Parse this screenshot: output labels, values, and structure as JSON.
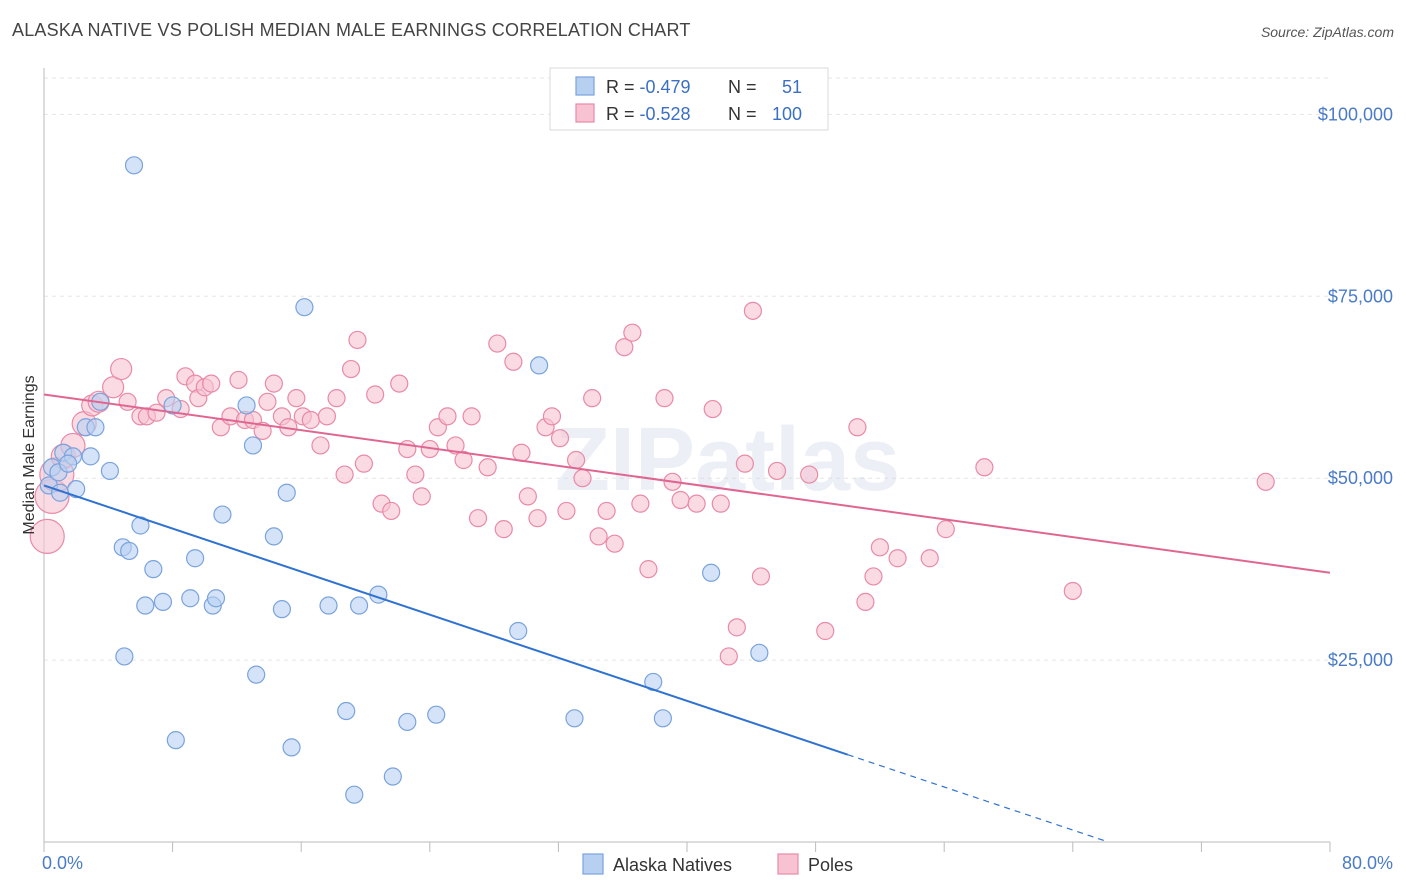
{
  "title": "ALASKA NATIVE VS POLISH MEDIAN MALE EARNINGS CORRELATION CHART",
  "source": "Source: ZipAtlas.com",
  "watermark": "ZIPatlas",
  "colors": {
    "blue_fill": "#b7d0f2",
    "blue_stroke": "#7aa3dd",
    "blue_line": "#2f72d0",
    "pink_fill": "#f7c3d2",
    "pink_stroke": "#e98aa6",
    "pink_line": "#e06692",
    "tick_label": "#4a7bc8"
  },
  "legend": {
    "rows": [
      {
        "r_label": "R = ",
        "r_value": "-0.479",
        "n_label": "N = ",
        "n_value": "51"
      },
      {
        "r_label": "R = ",
        "r_value": "-0.528",
        "n_label": "N = ",
        "n_value": "100"
      }
    ]
  },
  "chart_data": {
    "type": "scatter",
    "title": "ALASKA NATIVE VS POLISH MEDIAN MALE EARNINGS CORRELATION CHART",
    "xlabel": "",
    "ylabel": "Median Male Earnings",
    "xlim": [
      0,
      80
    ],
    "ylim": [
      0,
      105000
    ],
    "x_tick_labels": [
      "0.0%",
      "80.0%"
    ],
    "y_ticks": [
      25000,
      50000,
      75000,
      100000
    ],
    "y_tick_labels": [
      "$25,000",
      "$50,000",
      "$75,000",
      "$100,000"
    ],
    "grid": true,
    "legend_position": "top-center",
    "series": [
      {
        "name": "Alaska Natives",
        "r": -0.479,
        "n": 51,
        "trend": {
          "x0": 0,
          "y0": 49000,
          "x1": 50,
          "y1": 12000,
          "dashed_to_x": 66
        },
        "points": [
          [
            0.3,
            49000
          ],
          [
            0.5,
            51500
          ],
          [
            0.9,
            50800
          ],
          [
            1.0,
            48000
          ],
          [
            1.2,
            53500
          ],
          [
            1.8,
            53000
          ],
          [
            2.0,
            48500
          ],
          [
            2.6,
            57000
          ],
          [
            2.9,
            53000
          ],
          [
            3.2,
            57000
          ],
          [
            3.5,
            60500
          ],
          [
            4.1,
            51000
          ],
          [
            4.9,
            40500
          ],
          [
            5.0,
            25500
          ],
          [
            5.3,
            40000
          ],
          [
            5.6,
            93000
          ],
          [
            6.0,
            43500
          ],
          [
            6.3,
            32500
          ],
          [
            6.8,
            37500
          ],
          [
            7.4,
            33000
          ],
          [
            8.0,
            60000
          ],
          [
            8.2,
            14000
          ],
          [
            9.1,
            33500
          ],
          [
            9.4,
            39000
          ],
          [
            10.5,
            32500
          ],
          [
            10.7,
            33500
          ],
          [
            11.1,
            45000
          ],
          [
            12.6,
            60000
          ],
          [
            13.0,
            54500
          ],
          [
            13.2,
            23000
          ],
          [
            14.3,
            42000
          ],
          [
            14.8,
            32000
          ],
          [
            15.1,
            48000
          ],
          [
            15.4,
            13000
          ],
          [
            16.2,
            73500
          ],
          [
            17.7,
            32500
          ],
          [
            18.8,
            18000
          ],
          [
            19.3,
            6500
          ],
          [
            19.6,
            32500
          ],
          [
            20.8,
            34000
          ],
          [
            21.7,
            9000
          ],
          [
            22.6,
            16500
          ],
          [
            24.4,
            17500
          ],
          [
            29.5,
            29000
          ],
          [
            30.8,
            65500
          ],
          [
            33.0,
            17000
          ],
          [
            37.9,
            22000
          ],
          [
            38.5,
            17000
          ],
          [
            41.5,
            37000
          ],
          [
            44.5,
            26000
          ],
          [
            1.5,
            52000
          ]
        ]
      },
      {
        "name": "Poles",
        "r": -0.528,
        "n": 100,
        "trend": {
          "x0": 0,
          "y0": 61500,
          "x1": 80,
          "y1": 37000
        },
        "points": [
          [
            0.2,
            42000
          ],
          [
            0.5,
            47500
          ],
          [
            0.8,
            50500
          ],
          [
            1.2,
            53000
          ],
          [
            1.8,
            54500
          ],
          [
            2.5,
            57500
          ],
          [
            3.0,
            60000
          ],
          [
            3.4,
            60500
          ],
          [
            4.3,
            62500
          ],
          [
            4.8,
            65000
          ],
          [
            5.2,
            60500
          ],
          [
            6.0,
            58500
          ],
          [
            6.4,
            58500
          ],
          [
            7.0,
            59000
          ],
          [
            7.6,
            61000
          ],
          [
            8.5,
            59500
          ],
          [
            8.8,
            64000
          ],
          [
            9.4,
            63000
          ],
          [
            9.6,
            61000
          ],
          [
            10.0,
            62500
          ],
          [
            10.4,
            63000
          ],
          [
            11.0,
            57000
          ],
          [
            11.6,
            58500
          ],
          [
            12.1,
            63500
          ],
          [
            12.5,
            58000
          ],
          [
            13.0,
            58000
          ],
          [
            13.6,
            56500
          ],
          [
            13.9,
            60500
          ],
          [
            14.3,
            63000
          ],
          [
            14.8,
            58500
          ],
          [
            15.2,
            57000
          ],
          [
            15.7,
            61000
          ],
          [
            16.1,
            58500
          ],
          [
            16.6,
            58000
          ],
          [
            17.2,
            54500
          ],
          [
            17.6,
            58500
          ],
          [
            18.2,
            61000
          ],
          [
            18.7,
            50500
          ],
          [
            19.1,
            65000
          ],
          [
            19.5,
            69000
          ],
          [
            19.9,
            52000
          ],
          [
            20.6,
            61500
          ],
          [
            21.0,
            46500
          ],
          [
            21.6,
            45500
          ],
          [
            22.1,
            63000
          ],
          [
            22.6,
            54000
          ],
          [
            23.1,
            50500
          ],
          [
            23.5,
            47500
          ],
          [
            24.0,
            54000
          ],
          [
            24.5,
            57000
          ],
          [
            25.1,
            58500
          ],
          [
            25.6,
            54500
          ],
          [
            26.1,
            52500
          ],
          [
            26.6,
            58500
          ],
          [
            27.0,
            44500
          ],
          [
            27.6,
            51500
          ],
          [
            28.2,
            68500
          ],
          [
            28.6,
            43000
          ],
          [
            29.2,
            66000
          ],
          [
            29.7,
            53500
          ],
          [
            30.1,
            47500
          ],
          [
            30.7,
            44500
          ],
          [
            31.2,
            57000
          ],
          [
            31.6,
            58500
          ],
          [
            32.1,
            55500
          ],
          [
            32.5,
            45500
          ],
          [
            33.1,
            52500
          ],
          [
            33.5,
            50000
          ],
          [
            34.1,
            61000
          ],
          [
            34.5,
            42000
          ],
          [
            35.0,
            45500
          ],
          [
            35.5,
            41000
          ],
          [
            36.1,
            68000
          ],
          [
            36.6,
            70000
          ],
          [
            37.1,
            46500
          ],
          [
            37.6,
            37500
          ],
          [
            38.6,
            61000
          ],
          [
            39.1,
            49500
          ],
          [
            39.6,
            47000
          ],
          [
            40.6,
            46500
          ],
          [
            41.6,
            59500
          ],
          [
            42.1,
            46500
          ],
          [
            42.6,
            25500
          ],
          [
            43.1,
            29500
          ],
          [
            43.6,
            52000
          ],
          [
            44.1,
            73000
          ],
          [
            44.6,
            36500
          ],
          [
            45.6,
            51000
          ],
          [
            47.6,
            50500
          ],
          [
            48.6,
            29000
          ],
          [
            50.6,
            57000
          ],
          [
            51.1,
            33000
          ],
          [
            51.6,
            36500
          ],
          [
            53.1,
            39000
          ],
          [
            55.1,
            39000
          ],
          [
            56.1,
            43000
          ],
          [
            58.5,
            51500
          ],
          [
            64.0,
            34500
          ],
          [
            76.0,
            49500
          ],
          [
            52.0,
            40500
          ]
        ]
      }
    ]
  }
}
